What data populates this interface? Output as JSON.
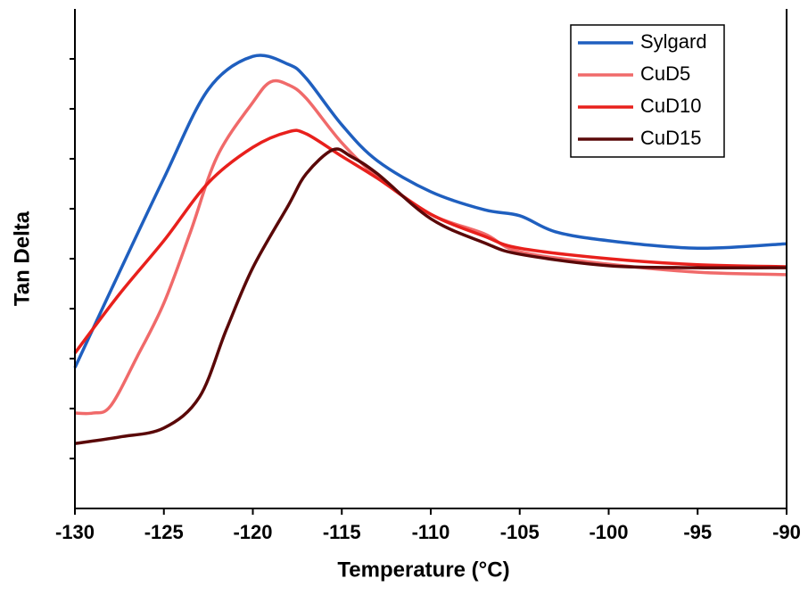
{
  "chart_data": {
    "type": "line",
    "xlabel": "Temperature (°C)",
    "ylabel": "Tan Delta",
    "xlim": [
      -130,
      -90
    ],
    "xticks": [
      -130,
      -125,
      -120,
      -115,
      -110,
      -105,
      -100,
      -95,
      -90
    ],
    "ylim": [
      0,
      10
    ],
    "yticks": [
      1,
      2,
      3,
      4,
      5,
      6,
      7,
      8,
      9
    ],
    "ytick_labels": false,
    "legend": "upper right",
    "series": [
      {
        "name": "Sylgard",
        "color": "#1f5fbf",
        "x": [
          -130,
          -127.5,
          -125,
          -122.5,
          -120,
          -118,
          -117,
          -115,
          -113,
          -110,
          -107,
          -105,
          -103,
          -100,
          -95,
          -90
        ],
        "values": [
          2.82,
          4.73,
          6.61,
          8.39,
          9.05,
          8.89,
          8.61,
          7.68,
          6.96,
          6.34,
          5.98,
          5.86,
          5.54,
          5.36,
          5.21,
          5.3
        ]
      },
      {
        "name": "CuD5",
        "color": "#f06a6a",
        "x": [
          -130,
          -129,
          -128,
          -126.5,
          -125,
          -123.5,
          -122,
          -120,
          -119,
          -118,
          -117,
          -115,
          -113,
          -110,
          -107,
          -105,
          -100,
          -95,
          -90
        ],
        "values": [
          1.91,
          1.91,
          2.05,
          3.04,
          4.11,
          5.54,
          7.05,
          8.13,
          8.54,
          8.48,
          8.21,
          7.32,
          6.64,
          5.89,
          5.5,
          5.14,
          4.89,
          4.73,
          4.68
        ]
      },
      {
        "name": "CuD10",
        "color": "#e8201c",
        "x": [
          -130,
          -127.5,
          -125,
          -122.5,
          -120,
          -118,
          -117,
          -115,
          -113,
          -110,
          -107,
          -105,
          -100,
          -95,
          -90
        ],
        "values": [
          3.11,
          4.29,
          5.36,
          6.52,
          7.23,
          7.54,
          7.5,
          7.05,
          6.61,
          5.89,
          5.45,
          5.21,
          5.0,
          4.88,
          4.84
        ]
      },
      {
        "name": "CuD15",
        "color": "#5a0808",
        "x": [
          -130,
          -127.5,
          -125,
          -123,
          -121.5,
          -120,
          -118,
          -117,
          -115.5,
          -114.5,
          -113,
          -110,
          -107,
          -105,
          -100,
          -95,
          -90
        ],
        "values": [
          1.3,
          1.43,
          1.61,
          2.23,
          3.57,
          4.82,
          6.07,
          6.7,
          7.18,
          7.05,
          6.7,
          5.8,
          5.32,
          5.09,
          4.86,
          4.82,
          4.82
        ]
      }
    ]
  }
}
